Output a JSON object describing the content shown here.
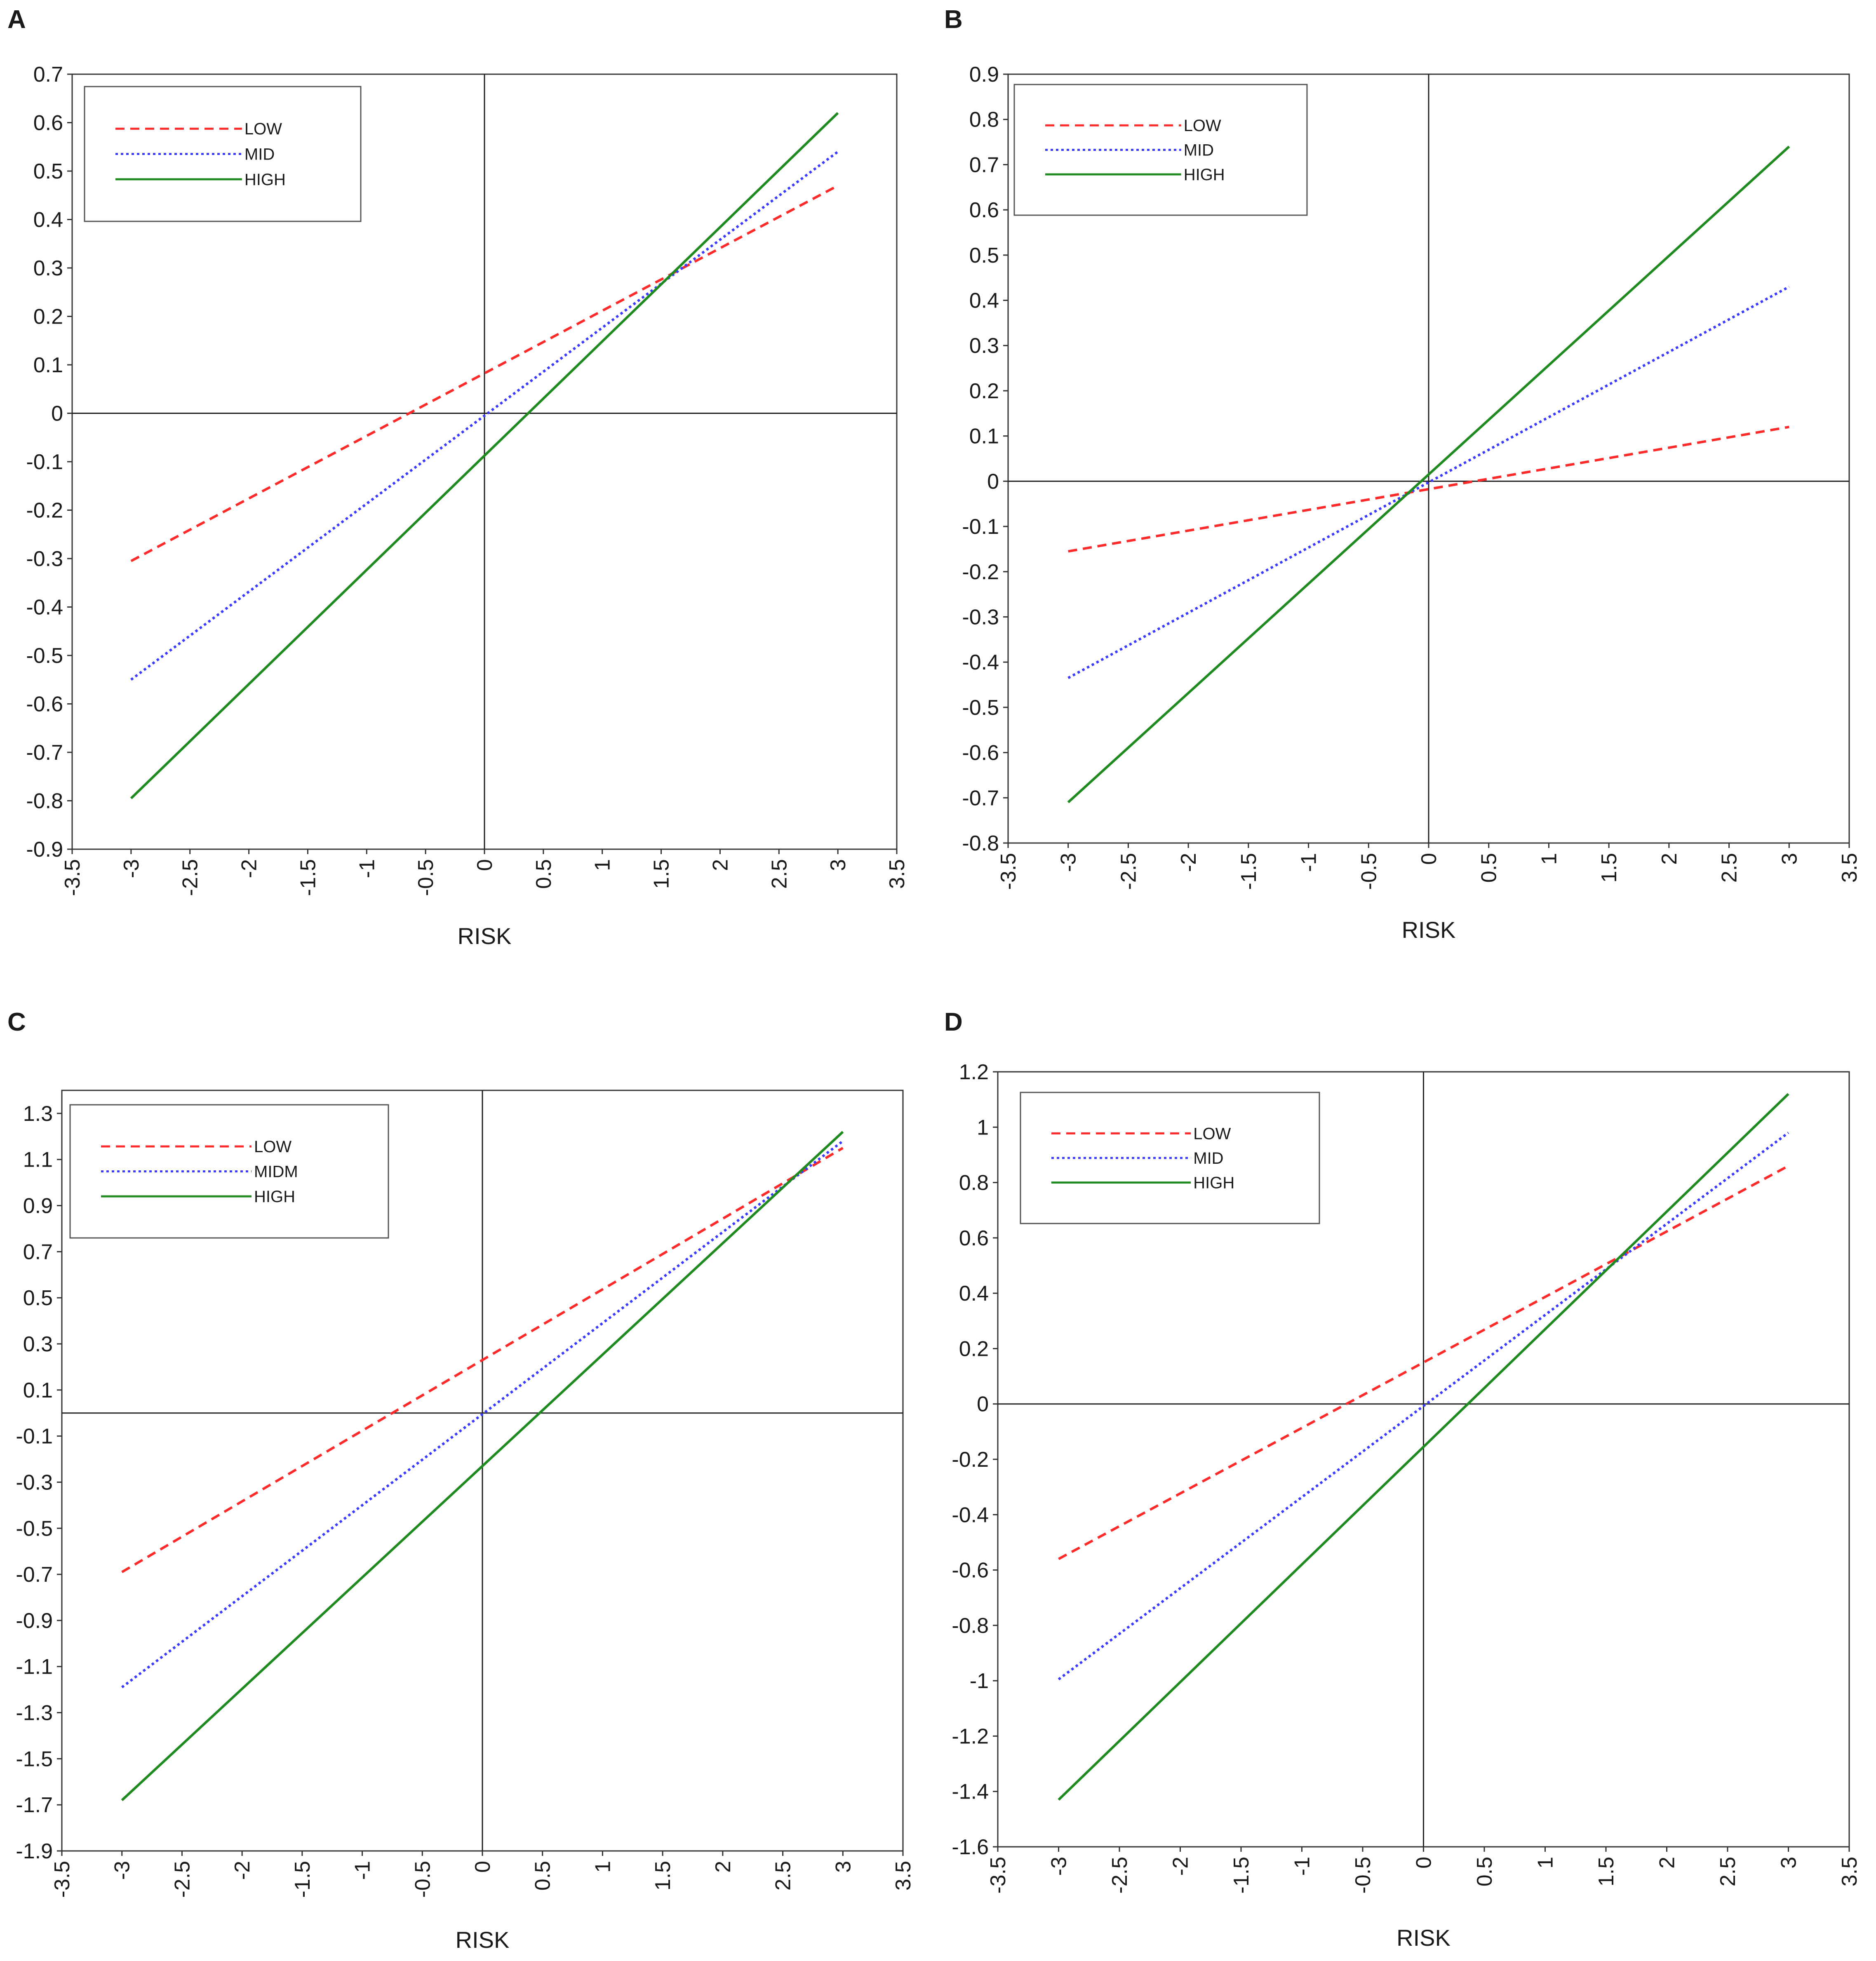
{
  "colors": {
    "low": "#ff2a2a",
    "mid": "#3b3bff",
    "high": "#1f8a1f",
    "axis": "#333333"
  },
  "chart_data": [
    {
      "panel_label": "A",
      "type": "line",
      "xlabel": "RISK",
      "ylabel": "",
      "xlim": [
        -3.5,
        3.5
      ],
      "ylim": [
        -0.9,
        0.7
      ],
      "xticks": [
        "-3.5",
        "-3",
        "-2.5",
        "-2",
        "-1.5",
        "-1",
        "-0.5",
        "0",
        "0.5",
        "1",
        "1.5",
        "2",
        "2.5",
        "3",
        "3.5"
      ],
      "yticks": [
        "0.7",
        "0.6",
        "0.5",
        "0.4",
        "0.3",
        "0.2",
        "0.1",
        "0",
        "-0.1",
        "-0.2",
        "-0.3",
        "-0.4",
        "-0.5",
        "-0.6",
        "-0.7",
        "-0.8",
        "-0.9"
      ],
      "grid": false,
      "legend_position": "top-left",
      "series": [
        {
          "name": "LOW",
          "style": "dashed",
          "color": "#ff2a2a",
          "x": [
            -3,
            3
          ],
          "y": [
            -0.305,
            0.47
          ]
        },
        {
          "name": "MID",
          "style": "dotted",
          "color": "#3b3bff",
          "x": [
            -3,
            3
          ],
          "y": [
            -0.55,
            0.54
          ]
        },
        {
          "name": "HIGH",
          "style": "solid",
          "color": "#1f8a1f",
          "x": [
            -3,
            3
          ],
          "y": [
            -0.795,
            0.62
          ]
        }
      ]
    },
    {
      "panel_label": "B",
      "type": "line",
      "xlabel": "RISK",
      "ylabel": "",
      "xlim": [
        -3.5,
        3.5
      ],
      "ylim": [
        -0.8,
        0.9
      ],
      "xticks": [
        "-3.5",
        "-3",
        "-2.5",
        "-2",
        "-1.5",
        "-1",
        "-0.5",
        "0",
        "0.5",
        "1",
        "1.5",
        "2",
        "2.5",
        "3",
        "3.5"
      ],
      "yticks": [
        "0.9",
        "0.8",
        "0.7",
        "0.6",
        "0.5",
        "0.4",
        "0.3",
        "0.2",
        "0.1",
        "0",
        "-0.1",
        "-0.2",
        "-0.3",
        "-0.4",
        "-0.5",
        "-0.6",
        "-0.7",
        "-0.8"
      ],
      "grid": false,
      "legend_position": "top-left",
      "series": [
        {
          "name": "LOW",
          "style": "dashed",
          "color": "#ff2a2a",
          "x": [
            -3,
            3
          ],
          "y": [
            -0.155,
            0.12
          ]
        },
        {
          "name": "MID",
          "style": "dotted",
          "color": "#3b3bff",
          "x": [
            -3,
            3
          ],
          "y": [
            -0.435,
            0.43
          ]
        },
        {
          "name": "HIGH",
          "style": "solid",
          "color": "#1f8a1f",
          "x": [
            -3,
            3
          ],
          "y": [
            -0.71,
            0.74
          ]
        }
      ]
    },
    {
      "panel_label": "C",
      "type": "line",
      "xlabel": "RISK",
      "ylabel": "",
      "xlim": [
        -3.5,
        3.5
      ],
      "ylim": [
        -1.9,
        1.4
      ],
      "xticks": [
        "-3.5",
        "-3",
        "-2.5",
        "-2",
        "-1.5",
        "-1",
        "-0.5",
        "0",
        "0.5",
        "1",
        "1.5",
        "2",
        "2.5",
        "3",
        "3.5"
      ],
      "yticks": [
        "1.3",
        "1.1",
        "0.9",
        "0.7",
        "0.5",
        "0.3",
        "0.1",
        "-0.1",
        "-0.3",
        "-0.5",
        "-0.7",
        "-0.9",
        "-1.1",
        "-1.3",
        "-1.5",
        "-1.7",
        "-1.9"
      ],
      "grid": false,
      "legend_position": "top-left",
      "series": [
        {
          "name": "LOW",
          "style": "dashed",
          "color": "#ff2a2a",
          "x": [
            -3,
            3
          ],
          "y": [
            -0.69,
            1.15
          ]
        },
        {
          "name": "MIDM",
          "style": "dotted",
          "color": "#3b3bff",
          "x": [
            -3,
            3
          ],
          "y": [
            -1.19,
            1.18
          ]
        },
        {
          "name": "HIGH",
          "style": "solid",
          "color": "#1f8a1f",
          "x": [
            -3,
            3
          ],
          "y": [
            -1.68,
            1.22
          ]
        }
      ]
    },
    {
      "panel_label": "D",
      "type": "line",
      "xlabel": "RISK",
      "ylabel": "",
      "xlim": [
        -3.5,
        3.5
      ],
      "ylim": [
        -1.6,
        1.2
      ],
      "xticks": [
        "-3.5",
        "-3",
        "-2.5",
        "-2",
        "-1.5",
        "-1",
        "-0.5",
        "0",
        "0.5",
        "1",
        "1.5",
        "2",
        "2.5",
        "3",
        "3.5"
      ],
      "yticks": [
        "1.2",
        "1",
        "0.8",
        "0.6",
        "0.4",
        "0.2",
        "0",
        "-0.2",
        "-0.4",
        "-0.6",
        "-0.8",
        "-1",
        "-1.2",
        "-1.4",
        "-1.6"
      ],
      "grid": false,
      "legend_position": "top-left",
      "series": [
        {
          "name": "LOW",
          "style": "dashed",
          "color": "#ff2a2a",
          "x": [
            -3,
            3
          ],
          "y": [
            -0.56,
            0.86
          ]
        },
        {
          "name": "MID",
          "style": "dotted",
          "color": "#3b3bff",
          "x": [
            -3,
            3
          ],
          "y": [
            -0.995,
            0.98
          ]
        },
        {
          "name": "HIGH",
          "style": "solid",
          "color": "#1f8a1f",
          "x": [
            -3,
            3
          ],
          "y": [
            -1.43,
            1.12
          ]
        }
      ]
    }
  ]
}
